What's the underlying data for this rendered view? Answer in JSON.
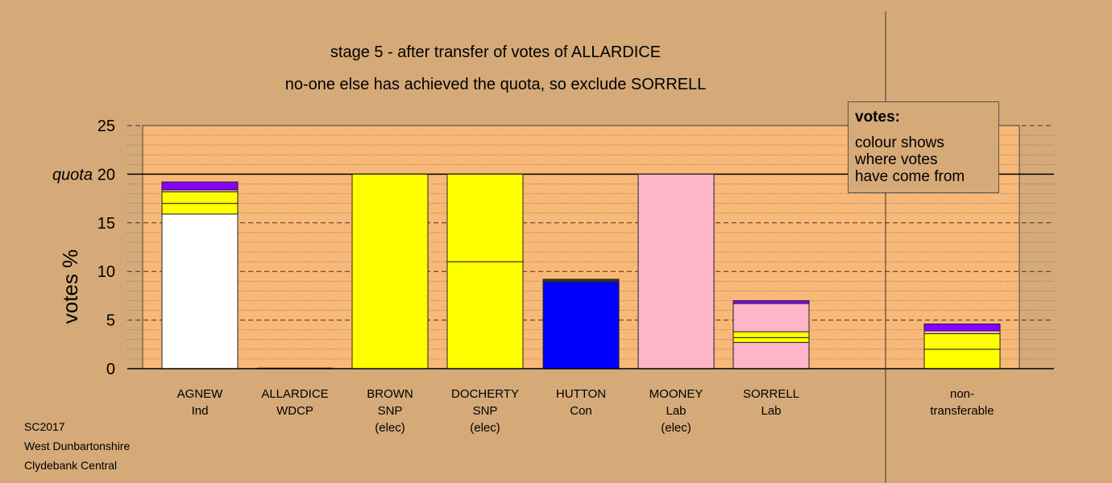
{
  "titles": {
    "line1": "stage 5 - after transfer of votes of ALLARDICE",
    "line2": "no-one else has achieved the quota, so exclude SORRELL"
  },
  "footer": [
    "SC2017",
    "West Dunbartonshire",
    "Clydebank Central"
  ],
  "legend": {
    "heading": "votes:",
    "lines": [
      "colour shows",
      "where votes",
      "have come from"
    ]
  },
  "colors": {
    "Ind": "#ffffff",
    "SNP": "#ffff00",
    "Con": "#0000ff",
    "Lab": "#ffb6c8",
    "WDCP": "#8800ff",
    "dark": "#333333",
    "background": "#d5aa78",
    "plot_background": "#f8b878"
  },
  "chart_data": {
    "type": "bar",
    "stacked": true,
    "ylabel": "votes %",
    "ylim": [
      0,
      25
    ],
    "yticks": [
      "0",
      "5",
      "10",
      "15",
      "20",
      "25"
    ],
    "quota": 20,
    "quota_label": "quota",
    "grid": "dashed major, dotted minor",
    "legend_placement": "top-right",
    "categories": [
      {
        "lines": [
          "AGNEW",
          "Ind"
        ]
      },
      {
        "lines": [
          "ALLARDICE",
          "WDCP"
        ]
      },
      {
        "lines": [
          "BROWN",
          "SNP",
          "(elec)"
        ]
      },
      {
        "lines": [
          "DOCHERTY",
          "SNP",
          "(elec)"
        ]
      },
      {
        "lines": [
          "HUTTON",
          "Con"
        ]
      },
      {
        "lines": [
          "MOONEY",
          "Lab",
          "(elec)"
        ]
      },
      {
        "lines": [
          "SORRELL",
          "Lab"
        ]
      },
      {
        "lines": []
      },
      {
        "lines": [
          "non-",
          "transferable"
        ]
      }
    ],
    "stacks": [
      [
        {
          "from": "Ind",
          "value": 15.9
        },
        {
          "from": "SNP",
          "value": 1.1
        },
        {
          "from": "SNP",
          "value": 1.2
        },
        {
          "from": "Lab",
          "value": 0.2
        },
        {
          "from": "WDCP",
          "value": 0.8
        }
      ],
      [],
      [
        {
          "from": "SNP",
          "value": 20.0
        }
      ],
      [
        {
          "from": "SNP",
          "value": 11.0
        },
        {
          "from": "SNP",
          "value": 9.0
        }
      ],
      [
        {
          "from": "Con",
          "value": 8.9
        },
        {
          "from": "dark",
          "value": 0.3
        }
      ],
      [
        {
          "from": "Lab",
          "value": 20.0
        }
      ],
      [
        {
          "from": "Lab",
          "value": 2.7
        },
        {
          "from": "SNP",
          "value": 0.5
        },
        {
          "from": "SNP",
          "value": 0.6
        },
        {
          "from": "Lab",
          "value": 2.9
        },
        {
          "from": "WDCP",
          "value": 0.3
        }
      ],
      [],
      [
        {
          "from": "SNP",
          "value": 2.0
        },
        {
          "from": "SNP",
          "value": 1.6
        },
        {
          "from": "Lab",
          "value": 0.3
        },
        {
          "from": "WDCP",
          "value": 0.7
        }
      ]
    ]
  }
}
